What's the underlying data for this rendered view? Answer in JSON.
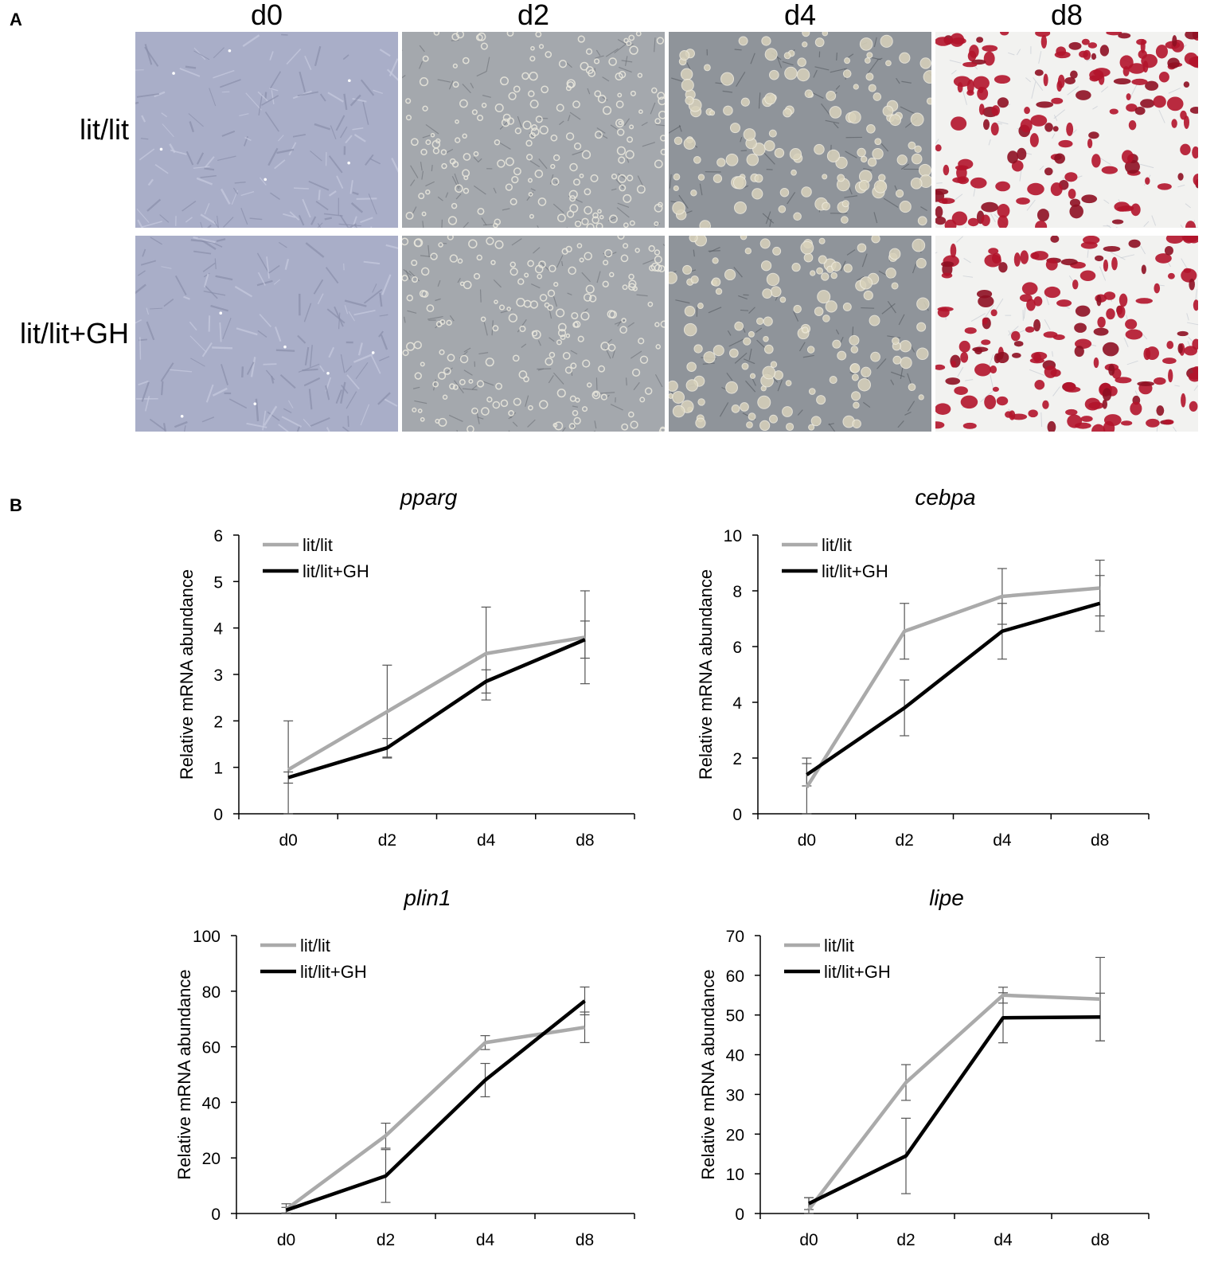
{
  "panel_a": {
    "letter": "A",
    "columns": [
      "d0",
      "d2",
      "d4",
      "d8"
    ],
    "rows": [
      "lit/lit",
      "lit/lit+GH"
    ],
    "colors": {
      "phase_contrast": "#a9aec8",
      "cell_bright": "#e8e6dc",
      "oil_red": "#b3142b",
      "background_white": "#f2f2f0"
    }
  },
  "panel_b": {
    "letter": "B"
  },
  "chart_data": [
    {
      "type": "line",
      "title": "pparg",
      "ylabel": "Relative mRNA abundance",
      "categories": [
        "d0",
        "d2",
        "d4",
        "d8"
      ],
      "ylim": [
        0,
        6
      ],
      "yticks": [
        0,
        1,
        2,
        3,
        4,
        5,
        6
      ],
      "series": [
        {
          "name": "lit/lit",
          "color": "#aaaaaa",
          "values": [
            0.95,
            2.2,
            3.45,
            3.8
          ],
          "errors": [
            1.05,
            1.0,
            1.0,
            1.0
          ]
        },
        {
          "name": "lit/lit+GH",
          "color": "#000000",
          "values": [
            0.78,
            1.42,
            2.85,
            3.75
          ],
          "errors": [
            0.12,
            0.2,
            0.25,
            0.4
          ]
        }
      ]
    },
    {
      "type": "line",
      "title": "cebpa",
      "ylabel": "Relative mRNA abundance",
      "categories": [
        "d0",
        "d2",
        "d4",
        "d8"
      ],
      "ylim": [
        0,
        10
      ],
      "yticks": [
        0,
        2,
        4,
        6,
        8,
        10
      ],
      "series": [
        {
          "name": "lit/lit",
          "color": "#aaaaaa",
          "values": [
            0.95,
            6.55,
            7.8,
            8.1
          ],
          "errors": [
            1.05,
            1.0,
            1.0,
            1.0
          ]
        },
        {
          "name": "lit/lit+GH",
          "color": "#000000",
          "values": [
            1.4,
            3.8,
            6.55,
            7.55
          ],
          "errors": [
            0.4,
            1.0,
            1.0,
            1.0
          ]
        }
      ]
    },
    {
      "type": "line",
      "title": "plin1",
      "ylabel": "Relative mRNA abundance",
      "categories": [
        "d0",
        "d2",
        "d4",
        "d8"
      ],
      "ylim": [
        0,
        100
      ],
      "yticks": [
        0,
        20,
        40,
        60,
        80,
        100
      ],
      "series": [
        {
          "name": "lit/lit",
          "color": "#aaaaaa",
          "values": [
            1.5,
            28,
            61.5,
            67
          ],
          "errors": [
            2,
            4.5,
            2.5,
            5.5
          ]
        },
        {
          "name": "lit/lit+GH",
          "color": "#000000",
          "values": [
            1.2,
            13.5,
            48,
            76.5
          ],
          "errors": [
            1,
            9.5,
            6,
            5
          ]
        }
      ]
    },
    {
      "type": "line",
      "title": "lipe",
      "ylabel": "Relative mRNA abundance",
      "categories": [
        "d0",
        "d2",
        "d4",
        "d8"
      ],
      "ylim": [
        0,
        70
      ],
      "yticks": [
        0,
        10,
        20,
        30,
        40,
        50,
        60,
        70
      ],
      "series": [
        {
          "name": "lit/lit",
          "color": "#aaaaaa",
          "values": [
            1,
            33,
            55,
            54
          ],
          "errors": [
            3,
            4.5,
            2,
            10.5
          ]
        },
        {
          "name": "lit/lit+GH",
          "color": "#000000",
          "values": [
            2.5,
            14.5,
            49.3,
            49.5
          ],
          "errors": [
            1.5,
            9.5,
            6.3,
            6
          ]
        }
      ]
    }
  ]
}
